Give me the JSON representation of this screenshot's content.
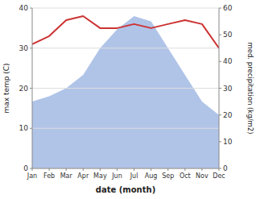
{
  "chart_data": {
    "type": "line",
    "categories": [
      "Jan",
      "Feb",
      "Mar",
      "Apr",
      "May",
      "Jun",
      "Jul",
      "Aug",
      "Sep",
      "Oct",
      "Nov",
      "Dec"
    ],
    "series": [
      {
        "type": "area",
        "axis": "y2",
        "color": "#b0c4e8",
        "values": [
          25,
          27,
          30,
          35,
          45,
          52,
          57,
          55,
          45,
          35,
          25,
          20
        ]
      },
      {
        "type": "line",
        "color": "#cc3333",
        "values": [
          31,
          33,
          37,
          38,
          35,
          35,
          36,
          35,
          36,
          37,
          36,
          30
        ]
      }
    ],
    "xlabel": "date (month)",
    "ylabel": "max temp (C)",
    "y2label": "med. precipitation (kg/m2)",
    "ylim": [
      0,
      40
    ],
    "yticks": [
      0,
      10,
      20,
      30,
      40
    ],
    "y2lim": [
      0,
      60
    ],
    "y2ticks": [
      0,
      10,
      20,
      30,
      40,
      50,
      60
    ],
    "grid": true
  }
}
